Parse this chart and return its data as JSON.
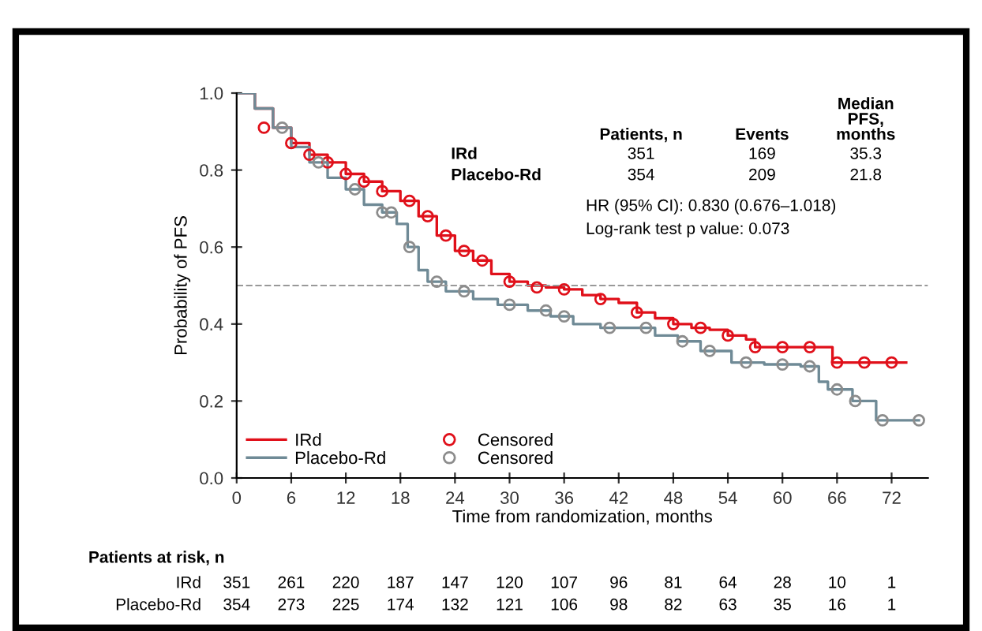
{
  "chart_data": {
    "type": "step",
    "xlabel": "Time from randomization, months",
    "ylabel": "Probability of PFS",
    "xlim": [
      0,
      76
    ],
    "ylim": [
      0,
      1.0
    ],
    "xticks": [
      0,
      6,
      12,
      18,
      24,
      30,
      36,
      42,
      48,
      54,
      60,
      66,
      72
    ],
    "yticks": [
      {
        "value": 0,
        "label": "0.0"
      },
      0.2,
      0.4,
      0.6,
      0.8,
      {
        "value": 1,
        "label": "1.0"
      }
    ],
    "grid": false,
    "legend": "bottom left",
    "series": [
      {
        "name": "IRd",
        "color": "#e0101a",
        "marker": "none",
        "x": [
          0,
          2,
          4,
          6,
          8,
          10,
          12,
          14,
          16,
          18,
          20,
          22,
          24,
          26,
          28,
          30,
          32,
          34,
          36,
          38,
          40,
          42,
          44,
          46,
          48,
          50,
          52,
          54,
          56,
          57,
          65.5,
          73.6
        ],
        "values": [
          1.0,
          0.96,
          0.91,
          0.87,
          0.84,
          0.82,
          0.79,
          0.77,
          0.745,
          0.72,
          0.68,
          0.63,
          0.59,
          0.565,
          0.53,
          0.51,
          0.5,
          0.495,
          0.49,
          0.475,
          0.465,
          0.455,
          0.43,
          0.415,
          0.4,
          0.39,
          0.385,
          0.37,
          0.36,
          0.34,
          0.3,
          0.3
        ]
      },
      {
        "name": "Placebo-Rd",
        "color": "#6f8a96",
        "marker": "none",
        "x": [
          0,
          2,
          4,
          6,
          8,
          10,
          12,
          14,
          16,
          17.6,
          18.8,
          20,
          21,
          23,
          26,
          28.7,
          32,
          34.5,
          37,
          40,
          43,
          46,
          48.5,
          51,
          54.4,
          58,
          62,
          64,
          65,
          67.7,
          70.3,
          75
        ],
        "values": [
          1.0,
          0.96,
          0.91,
          0.86,
          0.82,
          0.78,
          0.75,
          0.71,
          0.69,
          0.66,
          0.6,
          0.54,
          0.51,
          0.485,
          0.465,
          0.45,
          0.435,
          0.42,
          0.4,
          0.39,
          0.39,
          0.37,
          0.355,
          0.33,
          0.3,
          0.295,
          0.29,
          0.25,
          0.23,
          0.2,
          0.15,
          0.15
        ]
      },
      {
        "name": "Censored",
        "color": "#e0101a",
        "type": "scatter",
        "marker": "circle",
        "x": [
          3,
          6,
          8,
          10,
          12,
          14,
          16,
          19,
          21,
          23,
          25,
          27,
          30,
          33,
          36,
          40,
          44,
          48,
          51,
          54,
          57,
          60,
          63,
          66,
          69,
          72
        ],
        "values": [
          0.91,
          0.87,
          0.84,
          0.82,
          0.79,
          0.77,
          0.745,
          0.72,
          0.68,
          0.63,
          0.59,
          0.565,
          0.51,
          0.495,
          0.49,
          0.465,
          0.43,
          0.4,
          0.39,
          0.37,
          0.34,
          0.34,
          0.34,
          0.3,
          0.3,
          0.3
        ]
      },
      {
        "name": "Censored",
        "color": "#8c8c8c",
        "type": "scatter",
        "marker": "circle",
        "x": [
          5,
          9,
          13,
          16,
          17,
          19,
          22,
          25,
          30,
          34,
          36,
          41,
          45,
          49,
          52,
          56,
          60,
          63,
          66,
          68,
          71,
          75
        ],
        "values": [
          0.91,
          0.82,
          0.75,
          0.69,
          0.69,
          0.6,
          0.51,
          0.485,
          0.45,
          0.435,
          0.42,
          0.39,
          0.39,
          0.355,
          0.33,
          0.3,
          0.295,
          0.29,
          0.23,
          0.2,
          0.15,
          0.15
        ]
      }
    ],
    "ref_lines": [
      {
        "axis": "y",
        "value": 0.5,
        "color": "#999999",
        "line_style": "dashed"
      }
    ],
    "annotations": [
      "Patients, n",
      "Events",
      "Median\nPFS,\nmonths",
      "IRd",
      "351",
      "169",
      "35.3",
      "Placebo-Rd",
      "354",
      "209",
      "21.8",
      "HR (95% CI): 0.830 (0.676–1.018)",
      "Log-rank test p value: 0.073",
      "Patients at risk, n",
      "IRd",
      "Placebo-Rd",
      "351",
      "261",
      "220",
      "187",
      "147",
      "120",
      "107",
      "96",
      "81",
      "64",
      "28",
      "10",
      "1",
      "354",
      "273",
      "225",
      "174",
      "132",
      "121",
      "106",
      "98",
      "82",
      "63",
      "35",
      "16",
      "1"
    ]
  }
}
